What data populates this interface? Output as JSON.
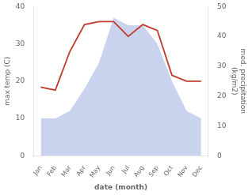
{
  "chart_data": {
    "type": "line",
    "categories": [
      "Jan",
      "Feb",
      "Mar",
      "Apr",
      "May",
      "Jun",
      "Jul",
      "Aug",
      "Sep",
      "Oct",
      "Nov",
      "Dec"
    ],
    "series": [
      {
        "type": "area",
        "color": "#b8c4e8",
        "values": [
          10,
          10,
          12,
          18,
          25,
          37,
          35,
          35,
          30,
          20,
          12,
          10
        ]
      },
      {
        "type": "line",
        "color": "#c0392b",
        "axis": "y2",
        "values": [
          23,
          22,
          35,
          44,
          45,
          45,
          40,
          44,
          42,
          27,
          25,
          25
        ]
      }
    ],
    "xlabel": "date (month)",
    "ylabel": "max temp (C)",
    "y2label": "med. precipitation\n(kg/m2)",
    "ylim": [
      0,
      40
    ],
    "yticks": [
      0,
      10,
      20,
      30,
      40
    ],
    "y2lim": [
      0,
      50
    ],
    "y2ticks": [
      0,
      10,
      20,
      30,
      40,
      50
    ],
    "grid": false
  }
}
